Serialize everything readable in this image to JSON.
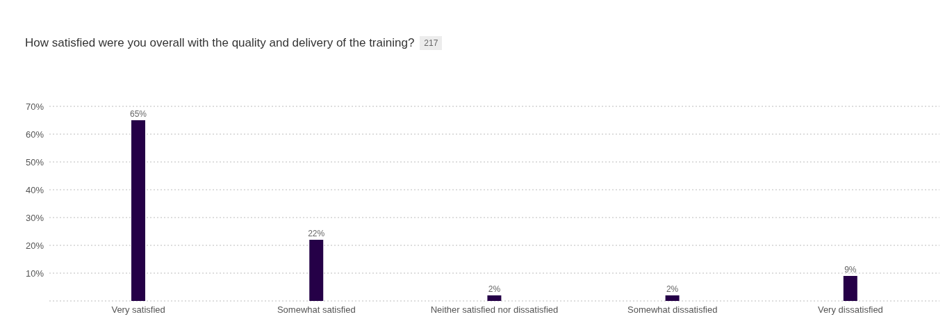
{
  "chart_data": {
    "type": "bar",
    "title": "How satisfied were you overall with the quality and delivery of the training?",
    "annotations": [
      "217"
    ],
    "categories": [
      "Very satisfied",
      "Somewhat satisfied",
      "Neither satisfied nor dissatisfied",
      "Somewhat dissatisfied",
      "Very dissatisfied"
    ],
    "values": [
      65,
      22,
      2,
      2,
      9
    ],
    "value_labels": [
      "65%",
      "22%",
      "2%",
      "2%",
      "9%"
    ],
    "color": "#250047",
    "ylim": [
      0,
      70
    ],
    "yticks": [
      {
        "value": 0,
        "label": null
      },
      {
        "value": 10,
        "label": "10%"
      },
      {
        "value": 20,
        "label": "20%"
      },
      {
        "value": 30,
        "label": "30%"
      },
      {
        "value": 40,
        "label": "40%"
      },
      {
        "value": 50,
        "label": "50%"
      },
      {
        "value": 60,
        "label": "60%"
      },
      {
        "value": 70,
        "label": "70%"
      }
    ],
    "grid": "y",
    "legend": false
  }
}
